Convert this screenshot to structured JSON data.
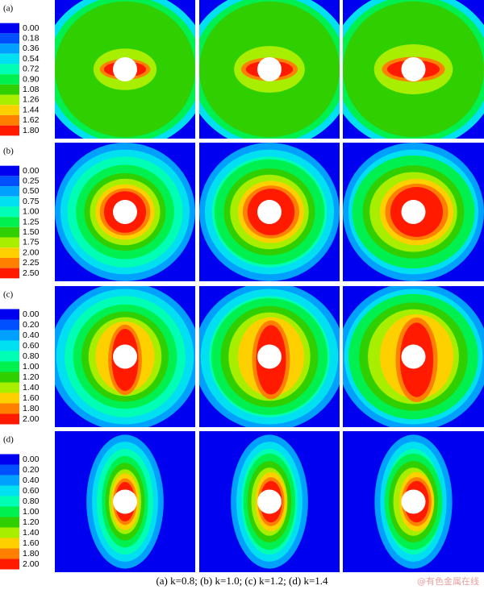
{
  "rows": [
    {
      "label": "(a)",
      "legend": [
        "0.00",
        "0.18",
        "0.36",
        "0.54",
        "0.72",
        "0.90",
        "1.08",
        "1.26",
        "1.44",
        "1.62",
        "1.80"
      ]
    },
    {
      "label": "(b)",
      "legend": [
        "0.00",
        "0.25",
        "0.50",
        "0.75",
        "1.00",
        "1.25",
        "1.50",
        "1.75",
        "2.00",
        "2.25",
        "2.50"
      ]
    },
    {
      "label": "(c)",
      "legend": [
        "0.00",
        "0.20",
        "0.40",
        "0.60",
        "0.80",
        "1.00",
        "1.20",
        "1.40",
        "1.60",
        "1.80",
        "2.00"
      ]
    },
    {
      "label": "(d)",
      "legend": [
        "0.00",
        "0.20",
        "0.40",
        "0.60",
        "0.80",
        "1.00",
        "1.20",
        "1.40",
        "1.60",
        "1.80",
        "2.00"
      ]
    }
  ],
  "caption": "(a) k=0.8; (b) k=1.0; (c) k=1.2; (d) k=1.4",
  "watermark": "@有色金属在线"
}
